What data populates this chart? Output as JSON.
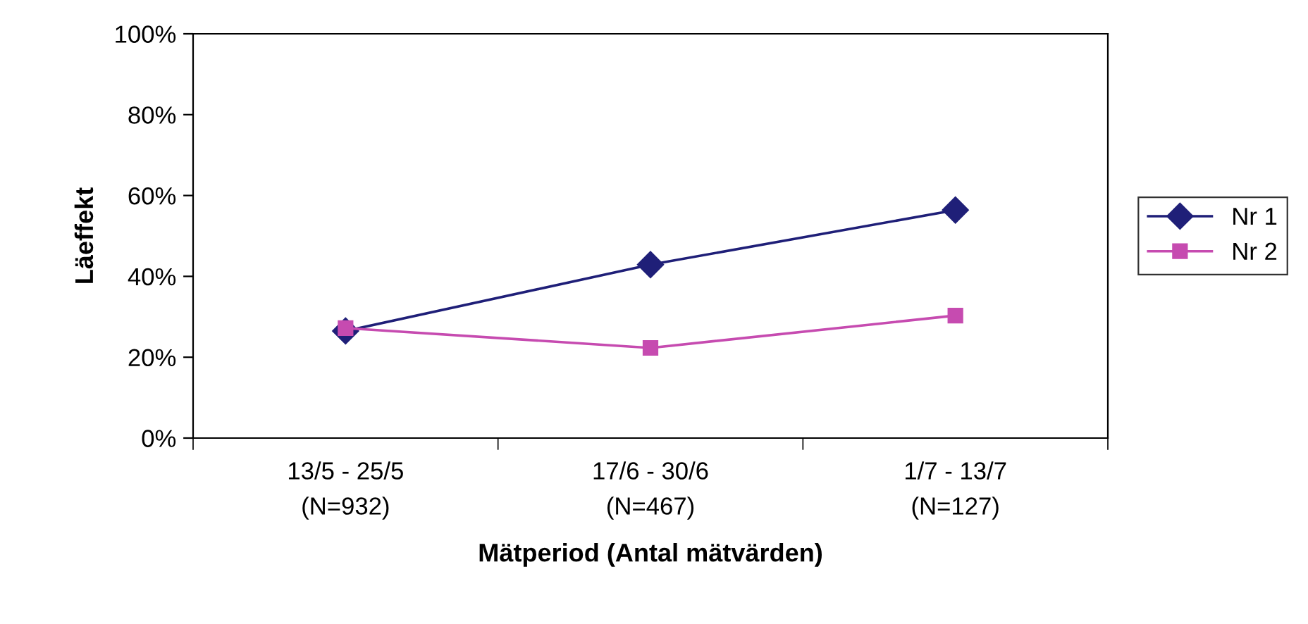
{
  "chart_data": {
    "type": "line",
    "xlabel": "Mätperiod (Antal mätvärden)",
    "ylabel": "Läeffekt",
    "categories": [
      "13/5 - 25/5\n(N=932)",
      "17/6 - 30/6\n(N=467)",
      "1/7 - 13/7\n(N=127)"
    ],
    "series": [
      {
        "name": "Nr 1",
        "color": "#1f1f78",
        "marker": "diamond",
        "values": [
          26.5,
          42.9,
          56.4
        ]
      },
      {
        "name": "Nr 2",
        "color": "#c64bb0",
        "marker": "square",
        "values": [
          27.2,
          22.3,
          30.3
        ]
      }
    ],
    "ylim": [
      0,
      100
    ],
    "yticks": [
      {
        "value": 0,
        "label": "0%"
      },
      {
        "value": 20,
        "label": "20%"
      },
      {
        "value": 40,
        "label": "40%"
      },
      {
        "value": 60,
        "label": "60%"
      },
      {
        "value": 80,
        "label": "80%"
      },
      {
        "value": 100,
        "label": "100%"
      }
    ],
    "grid": false,
    "legend": "right",
    "line_style": "solid"
  }
}
